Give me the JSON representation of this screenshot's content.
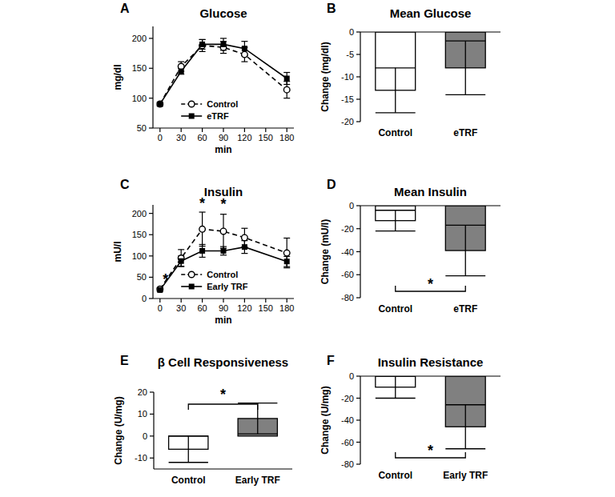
{
  "chart_data": [
    {
      "panel": "A",
      "type": "line",
      "title": "Glucose",
      "x_label": "min",
      "y_label": "mg/dl",
      "x": [
        0,
        30,
        60,
        90,
        120,
        180
      ],
      "xlim": [
        -10,
        190
      ],
      "xticks": [
        0,
        30,
        60,
        90,
        120,
        150,
        180
      ],
      "ylim": [
        50,
        220
      ],
      "yticks": [
        50,
        100,
        150,
        200
      ],
      "legend": "bottom",
      "series": [
        {
          "name": "Control",
          "color": "#000000",
          "marker": "circle-open",
          "line_style": "dashed",
          "values": [
            90,
            153,
            188,
            185,
            173,
            114
          ],
          "errors": [
            3,
            8,
            10,
            10,
            12,
            14
          ]
        },
        {
          "name": "eTRF",
          "color": "#000000",
          "marker": "square",
          "line_style": "solid",
          "values": [
            90,
            145,
            190,
            190,
            183,
            133
          ],
          "errors": [
            3,
            5,
            8,
            10,
            12,
            10
          ]
        }
      ]
    },
    {
      "panel": "B",
      "type": "bar",
      "title": "Mean Glucose",
      "y_label": "Change (mg/dl)",
      "categories": [
        "Control",
        "eTRF"
      ],
      "values": [
        -13,
        -8
      ],
      "errors": [
        5,
        6
      ],
      "colors": [
        "#ffffff",
        "#808080"
      ],
      "ylim": [
        -20,
        0
      ],
      "yticks": [
        -20,
        -15,
        -10,
        -5,
        0
      ]
    },
    {
      "panel": "C",
      "type": "line",
      "title": "Insulin",
      "x_label": "min",
      "y_label": "mU/l",
      "x": [
        0,
        30,
        60,
        90,
        120,
        180
      ],
      "xlim": [
        -10,
        190
      ],
      "xticks": [
        0,
        30,
        60,
        90,
        120,
        150,
        180
      ],
      "ylim": [
        0,
        220
      ],
      "yticks": [
        0,
        50,
        100,
        150,
        200
      ],
      "legend": "bottom",
      "series": [
        {
          "name": "Control",
          "color": "#000000",
          "marker": "circle-open",
          "line_style": "dashed",
          "values": [
            22,
            95,
            163,
            158,
            143,
            107
          ],
          "errors": [
            4,
            20,
            40,
            40,
            22,
            35
          ]
        },
        {
          "name": "Early TRF",
          "color": "#000000",
          "marker": "square",
          "line_style": "solid",
          "values": [
            20,
            88,
            112,
            112,
            121,
            87
          ],
          "errors": [
            3,
            12,
            15,
            10,
            15,
            12
          ]
        }
      ],
      "annotations": [
        {
          "text": "*",
          "x": 8,
          "y": 45
        },
        {
          "text": "*",
          "x": 60,
          "y": 224
        },
        {
          "text": "*",
          "x": 90,
          "y": 222
        }
      ]
    },
    {
      "panel": "D",
      "type": "bar",
      "title": "Mean Insulin",
      "y_label": "Change (mU/l)",
      "categories": [
        "Control",
        "eTRF"
      ],
      "values": [
        -13,
        -39
      ],
      "errors": [
        9,
        22
      ],
      "colors": [
        "#ffffff",
        "#808080"
      ],
      "ylim": [
        -80,
        0
      ],
      "yticks": [
        -80,
        -60,
        -40,
        -20,
        0
      ],
      "annotations": [
        {
          "text": "*",
          "between": [
            0,
            1
          ]
        }
      ]
    },
    {
      "panel": "E",
      "type": "bar",
      "title": "β Cell Responsiveness",
      "y_label": "Change (U/mg)",
      "categories": [
        "Control",
        "Early TRF"
      ],
      "values": [
        -6,
        8
      ],
      "errors": [
        6,
        7
      ],
      "colors": [
        "#ffffff",
        "#808080"
      ],
      "ylim": [
        -15,
        20
      ],
      "yticks": [
        -10,
        0,
        10,
        20
      ],
      "annotations": [
        {
          "text": "*",
          "between": [
            0,
            1
          ]
        }
      ]
    },
    {
      "panel": "F",
      "type": "bar",
      "title": "Insulin Resistance",
      "y_label": "Change (U/mg)",
      "categories": [
        "Control",
        "Early TRF"
      ],
      "values": [
        -10,
        -46
      ],
      "errors": [
        10,
        20
      ],
      "colors": [
        "#ffffff",
        "#808080"
      ],
      "ylim": [
        -80,
        0
      ],
      "yticks": [
        -80,
        -60,
        -40,
        -20,
        0
      ],
      "annotations": [
        {
          "text": "*",
          "between": [
            0,
            1
          ]
        }
      ]
    }
  ]
}
